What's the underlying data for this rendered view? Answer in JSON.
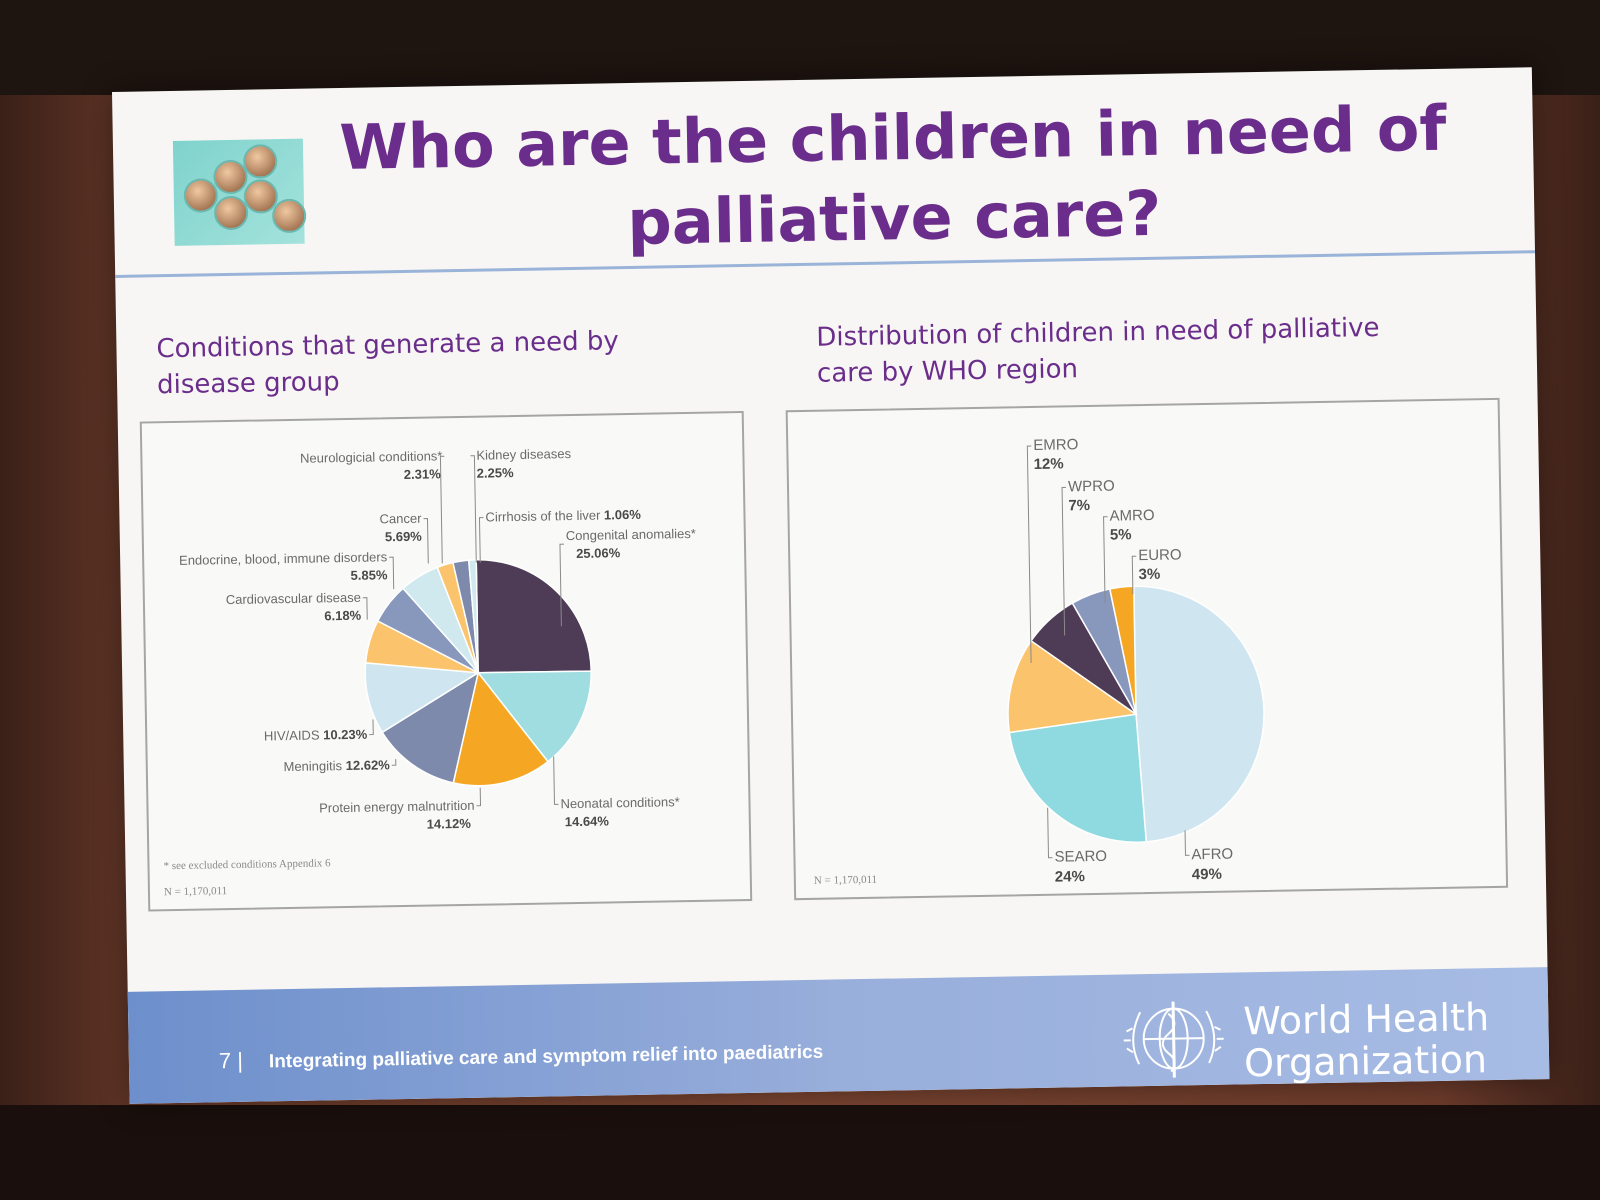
{
  "slide": {
    "title_line1": "Who are the children in need of",
    "title_line2": "palliative care?",
    "footer": {
      "page_number": "7",
      "separator": "|",
      "text": "Integrating palliative care and symptom relief into paediatrics",
      "org_line1": "World Health",
      "org_line2": "Organization"
    }
  },
  "left": {
    "subtitle_line1": "Conditions that generate a need by",
    "subtitle_line2": "disease group",
    "footnote": "* see excluded conditions Appendix 6",
    "n_note": "N = 1,170,011"
  },
  "right": {
    "subtitle_line1": "Distribution of children in need of palliative",
    "subtitle_line2": "care by WHO region",
    "n_note": "N = 1,170,011"
  },
  "colors": {
    "title": "#6b2d8b",
    "dark_purple": "#4e3b56",
    "light_teal": "#9fdde0",
    "orange": "#f5a623",
    "slate": "#7e8aab",
    "pale_blue": "#cfe6f0",
    "light_orange": "#fbc36b",
    "blue_gray": "#8898bd",
    "pale_teal": "#cfe9ee",
    "teal": "#8fdae0"
  },
  "chart_data": [
    {
      "type": "pie",
      "title": "Conditions that generate a need by disease group",
      "slices": [
        {
          "label": "Congenital anomalies*",
          "pct_text": "25.06%",
          "value": 25.06,
          "color": "#4e3b56"
        },
        {
          "label": "Neonatal conditions*",
          "pct_text": "14.64%",
          "value": 14.64,
          "color": "#9fdde0"
        },
        {
          "label": "Protein energy malnutrition",
          "pct_text": "14.12%",
          "value": 14.12,
          "color": "#f5a623"
        },
        {
          "label": "Meningitis",
          "pct_text": "12.62%",
          "value": 12.62,
          "color": "#7e8aab"
        },
        {
          "label": "HIV/AIDS",
          "pct_text": "10.23%",
          "value": 10.23,
          "color": "#cfe6f0"
        },
        {
          "label": "Cardiovascular disease",
          "pct_text": "6.18%",
          "value": 6.18,
          "color": "#fbc36b"
        },
        {
          "label": "Endocrine, blood, immune disorders",
          "pct_text": "5.85%",
          "value": 5.85,
          "color": "#8898bd"
        },
        {
          "label": "Cancer",
          "pct_text": "5.69%",
          "value": 5.69,
          "color": "#cfe9ee"
        },
        {
          "label": "Neurologicial conditions*",
          "pct_text": "2.31%",
          "value": 2.31,
          "color": "#fbc36b"
        },
        {
          "label": "Kidney diseases",
          "pct_text": "2.25%",
          "value": 2.25,
          "color": "#7e8aab"
        },
        {
          "label": "Cirrhosis of the liver",
          "pct_text": "1.06%",
          "value": 1.06,
          "color": "#cfe9ee"
        }
      ]
    },
    {
      "type": "pie",
      "title": "Distribution of children in need of palliative care by WHO region",
      "slices": [
        {
          "label": "AFRO",
          "pct_text": "49%",
          "value": 49,
          "color": "#cfe6f0"
        },
        {
          "label": "SEARO",
          "pct_text": "24%",
          "value": 24,
          "color": "#8fdae0"
        },
        {
          "label": "EMRO",
          "pct_text": "12%",
          "value": 12,
          "color": "#fbc36b"
        },
        {
          "label": "WPRO",
          "pct_text": "7%",
          "value": 7,
          "color": "#4e3b56"
        },
        {
          "label": "AMRO",
          "pct_text": "5%",
          "value": 5,
          "color": "#8898bd"
        },
        {
          "label": "EURO",
          "pct_text": "3%",
          "value": 3,
          "color": "#f5a623"
        }
      ]
    }
  ]
}
